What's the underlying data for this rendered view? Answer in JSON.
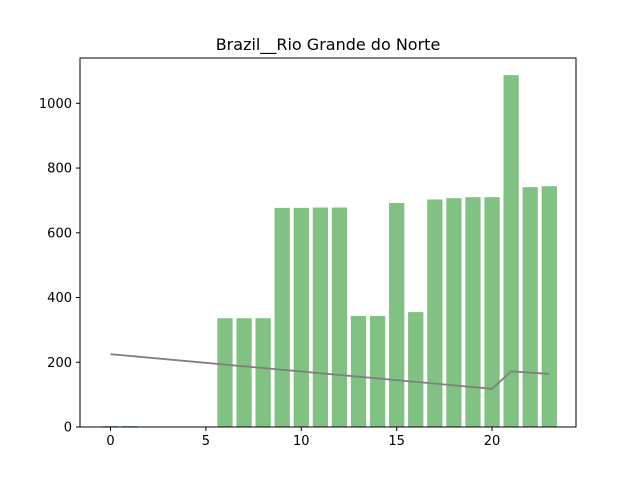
{
  "chart_data": {
    "type": "bar",
    "title": "Brazil__Rio Grande do Norte",
    "xlabel": "",
    "ylabel": "",
    "xlim": [
      -1.6,
      24.4
    ],
    "ylim": [
      0,
      1140
    ],
    "xticks": [
      0,
      5,
      10,
      15,
      20
    ],
    "yticks": [
      0,
      200,
      400,
      600,
      800,
      1000
    ],
    "grid": false,
    "legend": "none",
    "series": [
      {
        "type": "bar",
        "color": "#81c184",
        "x": [
          0,
          1,
          2,
          3,
          4,
          5,
          6,
          7,
          8,
          9,
          10,
          11,
          12,
          13,
          14,
          15,
          16,
          17,
          18,
          19,
          20,
          21,
          22,
          23
        ],
        "values": [
          3,
          3,
          0,
          0,
          0,
          0,
          336,
          336,
          336,
          677,
          677,
          678,
          678,
          343,
          343,
          692,
          355,
          703,
          707,
          710,
          710,
          1087,
          741,
          744
        ]
      },
      {
        "type": "line",
        "color": "#808080",
        "x": [
          0,
          20,
          21,
          23
        ],
        "values": [
          225,
          118,
          172,
          164
        ]
      }
    ]
  }
}
